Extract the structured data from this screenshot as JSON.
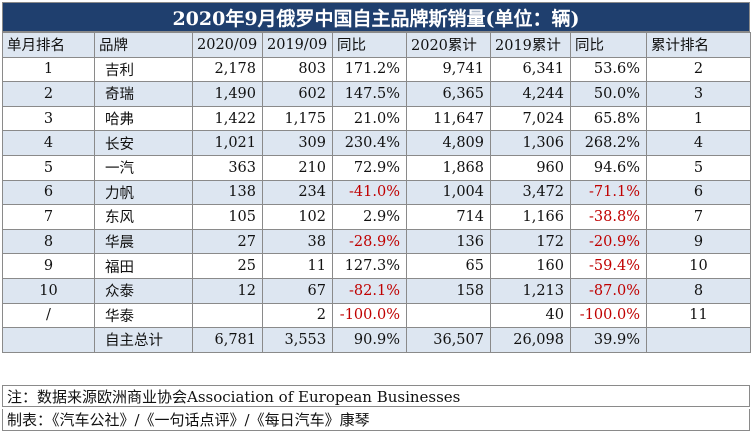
{
  "title": "2020年9月俄罗中国自主品牌斯销量(单位：辆)",
  "columns": [
    "单月排名",
    "品牌",
    "2020/09",
    "2019/09",
    "同比",
    "2020累计",
    "2019累计",
    "同比",
    "累计排名"
  ],
  "rows": [
    {
      "rank": "1",
      "brand": "吉利",
      "m2020": "2,178",
      "m2019": "803",
      "yoy": "171.2%",
      "c2020": "9,741",
      "c2019": "6,341",
      "cyoy": "53.6%",
      "crank": "2"
    },
    {
      "rank": "2",
      "brand": "奇瑞",
      "m2020": "1,490",
      "m2019": "602",
      "yoy": "147.5%",
      "c2020": "6,365",
      "c2019": "4,244",
      "cyoy": "50.0%",
      "crank": "3"
    },
    {
      "rank": "3",
      "brand": "哈弗",
      "m2020": "1,422",
      "m2019": "1,175",
      "yoy": "21.0%",
      "c2020": "11,647",
      "c2019": "7,024",
      "cyoy": "65.8%",
      "crank": "1"
    },
    {
      "rank": "4",
      "brand": "长安",
      "m2020": "1,021",
      "m2019": "309",
      "yoy": "230.4%",
      "c2020": "4,809",
      "c2019": "1,306",
      "cyoy": "268.2%",
      "crank": "4"
    },
    {
      "rank": "5",
      "brand": "一汽",
      "m2020": "363",
      "m2019": "210",
      "yoy": "72.9%",
      "c2020": "1,868",
      "c2019": "960",
      "cyoy": "94.6%",
      "crank": "5"
    },
    {
      "rank": "6",
      "brand": "力帆",
      "m2020": "138",
      "m2019": "234",
      "yoy": "-41.0%",
      "c2020": "1,004",
      "c2019": "3,472",
      "cyoy": "-71.1%",
      "crank": "6"
    },
    {
      "rank": "7",
      "brand": "东风",
      "m2020": "105",
      "m2019": "102",
      "yoy": "2.9%",
      "c2020": "714",
      "c2019": "1,166",
      "cyoy": "-38.8%",
      "crank": "7"
    },
    {
      "rank": "8",
      "brand": "华晨",
      "m2020": "27",
      "m2019": "38",
      "yoy": "-28.9%",
      "c2020": "136",
      "c2019": "172",
      "cyoy": "-20.9%",
      "crank": "9"
    },
    {
      "rank": "9",
      "brand": "福田",
      "m2020": "25",
      "m2019": "11",
      "yoy": "127.3%",
      "c2020": "65",
      "c2019": "160",
      "cyoy": "-59.4%",
      "crank": "10"
    },
    {
      "rank": "10",
      "brand": "众泰",
      "m2020": "12",
      "m2019": "67",
      "yoy": "-82.1%",
      "c2020": "158",
      "c2019": "1,213",
      "cyoy": "-87.0%",
      "crank": "8"
    },
    {
      "rank": "/",
      "brand": "华泰",
      "m2020": "",
      "m2019": "2",
      "yoy": "-100.0%",
      "c2020": "",
      "c2019": "40",
      "cyoy": "-100.0%",
      "crank": "11"
    },
    {
      "rank": "",
      "brand": "自主总计",
      "m2020": "6,781",
      "m2019": "3,553",
      "yoy": "90.9%",
      "c2020": "36,507",
      "c2019": "26,098",
      "cyoy": "39.9%",
      "crank": ""
    }
  ],
  "note": "注：数据来源欧洲商业协会Association of European Businesses",
  "credit": "制表：《汽车公社》/《一句话点评》/《每日汽车》康琴",
  "colors": {
    "title_bg": "#1f3f6e",
    "zebra": "#dde6f1",
    "negative": "#c00000",
    "border": "#8a8a8a"
  }
}
